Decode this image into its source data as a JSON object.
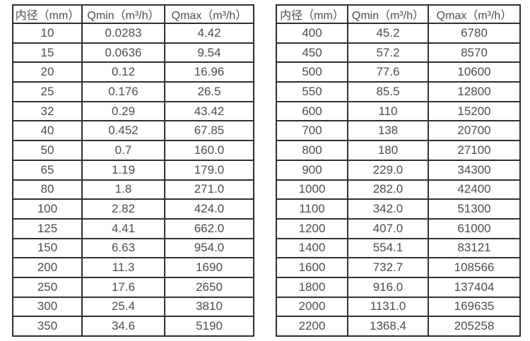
{
  "colors": {
    "border": "#303030",
    "text": "#4d4d4d",
    "background": "#ffffff"
  },
  "chart_data": [
    {
      "type": "table",
      "title": "",
      "columns": [
        "内径（mm）",
        "Qmin（m³/h）",
        "Qmax（m³/h）"
      ],
      "rows": [
        [
          "10",
          "0.0283",
          "4.42"
        ],
        [
          "15",
          "0.0636",
          "9.54"
        ],
        [
          "20",
          "0.12",
          "16.96"
        ],
        [
          "25",
          "0.176",
          "26.5"
        ],
        [
          "32",
          "0.29",
          "43.42"
        ],
        [
          "40",
          "0.452",
          "67.85"
        ],
        [
          "50",
          "0.7",
          "160.0"
        ],
        [
          "65",
          "1.19",
          "179.0"
        ],
        [
          "80",
          "1.8",
          "271.0"
        ],
        [
          "100",
          "2.82",
          "424.0"
        ],
        [
          "125",
          "4.41",
          "662.0"
        ],
        [
          "150",
          "6.63",
          "954.0"
        ],
        [
          "200",
          "11.3",
          "1690"
        ],
        [
          "250",
          "17.6",
          "2650"
        ],
        [
          "300",
          "25.4",
          "3810"
        ],
        [
          "350",
          "34.6",
          "5190"
        ]
      ]
    },
    {
      "type": "table",
      "title": "",
      "columns": [
        "内径（mm）",
        "Qmin（m³/h）",
        "Qmax（m³/h）"
      ],
      "rows": [
        [
          "400",
          "45.2",
          "6780"
        ],
        [
          "450",
          "57.2",
          "8570"
        ],
        [
          "500",
          "77.6",
          "10600"
        ],
        [
          "550",
          "85.5",
          "12800"
        ],
        [
          "600",
          "110",
          "15200"
        ],
        [
          "700",
          "138",
          "20700"
        ],
        [
          "800",
          "180",
          "27100"
        ],
        [
          "900",
          "229.0",
          "34300"
        ],
        [
          "1000",
          "282.0",
          "42400"
        ],
        [
          "1100",
          "342.0",
          "51300"
        ],
        [
          "1200",
          "407.0",
          "61000"
        ],
        [
          "1400",
          "554.1",
          "83121"
        ],
        [
          "1600",
          "732.7",
          "108566"
        ],
        [
          "1800",
          "916.0",
          "137404"
        ],
        [
          "2000",
          "1131.0",
          "169635"
        ],
        [
          "2200",
          "1368.4",
          "205258"
        ]
      ]
    }
  ]
}
